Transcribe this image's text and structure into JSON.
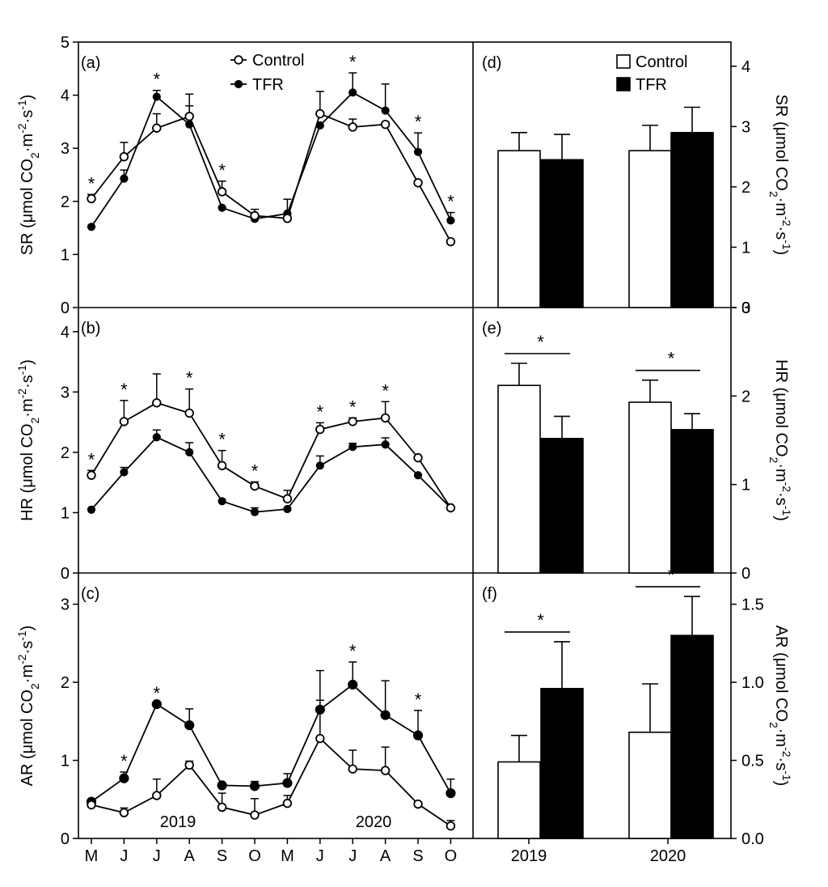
{
  "months": [
    "M",
    "J",
    "J",
    "A",
    "S",
    "O",
    "M",
    "J",
    "J",
    "A",
    "S",
    "O"
  ],
  "years": [
    "2019",
    "2020"
  ],
  "legend": {
    "control": "Control",
    "tfr": "TFR"
  },
  "colors": {
    "line": "#000000",
    "control_fill": "#ffffff",
    "tfr_fill": "#000000"
  },
  "star": "*",
  "chart_data": [
    {
      "type": "line",
      "panel_label": "(a)",
      "ylabel": "SR (μmol CO2·m-2·s-1)",
      "ylim": [
        0,
        5
      ],
      "yticks": [
        0,
        1,
        2,
        3,
        4,
        5
      ],
      "series": [
        {
          "name": "Control",
          "marker": "open-circle",
          "values": [
            2.05,
            2.84,
            3.38,
            3.6,
            2.18,
            1.73,
            1.68,
            3.65,
            3.4,
            3.45,
            2.35,
            1.24
          ],
          "errors": [
            0.08,
            0.27,
            0.27,
            0.42,
            0.2,
            0.12,
            0.0,
            0.42,
            0.15,
            0.0,
            0.0,
            0.0
          ]
        },
        {
          "name": "TFR",
          "marker": "filled-circle",
          "values": [
            1.52,
            2.43,
            3.97,
            3.45,
            1.88,
            1.67,
            1.77,
            3.43,
            4.05,
            3.71,
            2.93,
            1.64
          ],
          "errors": [
            0.0,
            0.16,
            0.12,
            0.35,
            0.0,
            0.0,
            0.27,
            0.0,
            0.37,
            0.5,
            0.36,
            0.15
          ]
        }
      ],
      "significant": [
        0,
        2,
        4,
        8,
        10,
        11
      ],
      "legend_shown": true
    },
    {
      "type": "line",
      "panel_label": "(b)",
      "ylabel": "HR (μmol CO2·m-2·s-1)",
      "ylim": [
        0,
        4.4
      ],
      "yticks": [
        0,
        1,
        2,
        3,
        4
      ],
      "series": [
        {
          "name": "Control",
          "marker": "open-circle",
          "values": [
            1.62,
            2.51,
            2.82,
            2.65,
            1.78,
            1.44,
            1.23,
            2.38,
            2.51,
            2.57,
            1.91,
            1.08
          ],
          "errors": [
            0.08,
            0.35,
            0.48,
            0.4,
            0.25,
            0.07,
            0.14,
            0.11,
            0.06,
            0.27,
            0.0,
            0.0
          ]
        },
        {
          "name": "TFR",
          "marker": "filled-circle",
          "values": [
            1.05,
            1.67,
            2.25,
            2.0,
            1.19,
            1.01,
            1.06,
            1.78,
            2.09,
            2.13,
            1.62,
            1.08
          ],
          "errors": [
            0.0,
            0.08,
            0.12,
            0.16,
            0.0,
            0.07,
            0.0,
            0.16,
            0.06,
            0.11,
            0.0,
            0.0
          ]
        }
      ],
      "significant": [
        0,
        1,
        3,
        4,
        5,
        7,
        8,
        9
      ],
      "legend_shown": false
    },
    {
      "type": "line",
      "panel_label": "(c)",
      "ylabel": "AR (μmol CO2·m-2·s-1)",
      "ylim": [
        0,
        3.4
      ],
      "yticks": [
        0,
        1,
        2,
        3
      ],
      "series": [
        {
          "name": "Control",
          "marker": "open-circle",
          "values": [
            0.43,
            0.33,
            0.55,
            0.94,
            0.4,
            0.3,
            0.45,
            1.28,
            0.89,
            0.87,
            0.44,
            0.16
          ],
          "errors": [
            0.0,
            0.06,
            0.21,
            0.05,
            0.18,
            0.21,
            0.1,
            0.87,
            0.24,
            0.3,
            0.0,
            0.07
          ]
        },
        {
          "name": "TFR",
          "marker": "filled-circle",
          "values": [
            0.47,
            0.77,
            1.72,
            1.45,
            0.68,
            0.67,
            0.71,
            1.65,
            1.97,
            1.58,
            1.32,
            0.58
          ],
          "errors": [
            0.0,
            0.08,
            0.0,
            0.21,
            0.0,
            0.06,
            0.12,
            0.12,
            0.29,
            0.44,
            0.32,
            0.18
          ]
        }
      ],
      "significant": [
        1,
        2,
        8,
        10
      ],
      "year_labels_shown": true
    },
    {
      "type": "bar",
      "panel_label": "(d)",
      "ylabel": "SR (μmol CO2·m-2·s-1)",
      "ylim": [
        0,
        4.4
      ],
      "yticks": [
        "0",
        "1",
        "2",
        "3",
        "4"
      ],
      "categories": [
        "2019",
        "2020"
      ],
      "series": [
        {
          "name": "Control",
          "values": [
            2.6,
            2.6
          ],
          "errors": [
            0.3,
            0.42
          ]
        },
        {
          "name": "TFR",
          "values": [
            2.45,
            2.9
          ],
          "errors": [
            0.42,
            0.42
          ]
        }
      ],
      "significant": [],
      "legend_shown": true
    },
    {
      "type": "bar",
      "panel_label": "(e)",
      "ylabel": "HR (μmol CO2·m-2·s-1)",
      "ylim": [
        0,
        3.0
      ],
      "yticks": [
        "0",
        "1",
        "2",
        "3"
      ],
      "categories": [
        "2019",
        "2020"
      ],
      "series": [
        {
          "name": "Control",
          "values": [
            2.12,
            1.93
          ],
          "errors": [
            0.25,
            0.25
          ]
        },
        {
          "name": "TFR",
          "values": [
            1.52,
            1.62
          ],
          "errors": [
            0.25,
            0.18
          ]
        }
      ],
      "significant": [
        0,
        1
      ]
    },
    {
      "type": "bar",
      "panel_label": "(f)",
      "ylabel": "AR (μmol CO2·m-2·s-1)",
      "ylim": [
        0,
        1.7
      ],
      "yticks": [
        "0.0",
        "0.5",
        "1.0",
        "1.5"
      ],
      "categories": [
        "2019",
        "2020"
      ],
      "series": [
        {
          "name": "Control",
          "values": [
            0.49,
            0.68
          ],
          "errors": [
            0.17,
            0.31
          ]
        },
        {
          "name": "TFR",
          "values": [
            0.96,
            1.3
          ],
          "errors": [
            0.3,
            0.25
          ]
        }
      ],
      "significant": [
        0,
        1
      ]
    }
  ]
}
